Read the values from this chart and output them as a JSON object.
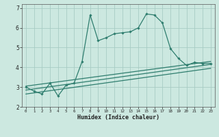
{
  "xlabel": "Humidex (Indice chaleur)",
  "bg_color": "#cce8e0",
  "grid_color": "#a8ccc4",
  "line_color": "#2e7d6e",
  "xlim": [
    -0.5,
    23.5
  ],
  "ylim": [
    2,
    7.2
  ],
  "yticks": [
    2,
    3,
    4,
    5,
    6,
    7
  ],
  "xticks": [
    0,
    1,
    2,
    3,
    4,
    5,
    6,
    7,
    8,
    9,
    10,
    11,
    12,
    13,
    14,
    15,
    16,
    17,
    18,
    19,
    20,
    21,
    22,
    23
  ],
  "main_line_x": [
    0,
    1,
    2,
    3,
    4,
    5,
    6,
    7,
    8,
    9,
    10,
    11,
    12,
    13,
    14,
    15,
    16,
    17,
    18,
    19,
    20,
    21,
    22,
    23
  ],
  "main_line_y": [
    3.0,
    2.8,
    2.65,
    3.2,
    2.55,
    3.1,
    3.2,
    4.3,
    6.65,
    5.35,
    5.5,
    5.7,
    5.75,
    5.8,
    6.0,
    6.7,
    6.65,
    6.25,
    4.95,
    4.45,
    4.1,
    4.25,
    4.2,
    4.2
  ],
  "line1_x": [
    0,
    23
  ],
  "line1_y": [
    3.05,
    4.3
  ],
  "line2_x": [
    0,
    23
  ],
  "line2_y": [
    2.85,
    4.15
  ],
  "line3_x": [
    0,
    23
  ],
  "line3_y": [
    2.65,
    3.95
  ]
}
